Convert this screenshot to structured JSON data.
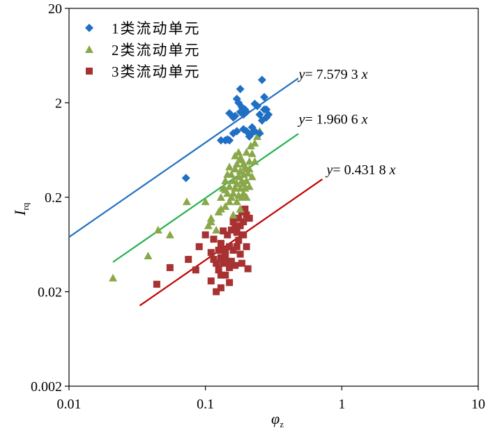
{
  "chart_data": {
    "type": "scatter",
    "x_scale": "log",
    "y_scale": "log",
    "xlim": [
      0.01,
      10
    ],
    "ylim": [
      0.002,
      20
    ],
    "x_ticks": [
      {
        "value": 0.01,
        "label": "0.01"
      },
      {
        "value": 0.1,
        "label": "0.1"
      },
      {
        "value": 1,
        "label": "1"
      },
      {
        "value": 10,
        "label": "10"
      }
    ],
    "y_ticks": [
      {
        "value": 0.002,
        "label": "0.002"
      },
      {
        "value": 0.02,
        "label": "0.02"
      },
      {
        "value": 0.2,
        "label": "0.2"
      },
      {
        "value": 2,
        "label": "2"
      },
      {
        "value": 20,
        "label": "20"
      }
    ],
    "xlabel": "φ",
    "xlabel_sub": "z",
    "ylabel": "I",
    "ylabel_sub": "rq",
    "legend_position": "top-left",
    "series": [
      {
        "name": "1类流动单元",
        "marker": "diamond",
        "color": "#1f6fc4",
        "points": [
          [
            0.072,
            0.32
          ],
          [
            0.13,
            0.8
          ],
          [
            0.14,
            0.8
          ],
          [
            0.145,
            0.82
          ],
          [
            0.15,
            0.8
          ],
          [
            0.15,
            1.55
          ],
          [
            0.16,
            1.4
          ],
          [
            0.165,
            1.45
          ],
          [
            0.17,
            2.2
          ],
          [
            0.17,
            1.0
          ],
          [
            0.175,
            2.0
          ],
          [
            0.18,
            2.8
          ],
          [
            0.18,
            1.6
          ],
          [
            0.185,
            1.8
          ],
          [
            0.19,
            1.5
          ],
          [
            0.195,
            1.7
          ],
          [
            0.2,
            1.6
          ],
          [
            0.2,
            1.0
          ],
          [
            0.21,
            0.88
          ],
          [
            0.22,
            1.1
          ],
          [
            0.23,
            1.95
          ],
          [
            0.23,
            1.0
          ],
          [
            0.24,
            1.85
          ],
          [
            0.25,
            1.5
          ],
          [
            0.25,
            0.95
          ],
          [
            0.26,
            3.5
          ],
          [
            0.26,
            1.3
          ],
          [
            0.27,
            2.3
          ],
          [
            0.27,
            1.7
          ],
          [
            0.28,
            1.7
          ],
          [
            0.28,
            1.4
          ],
          [
            0.29,
            1.5
          ],
          [
            0.16,
            0.95
          ],
          [
            0.19,
            1.05
          ],
          [
            0.22,
            0.96
          ]
        ]
      },
      {
        "name": "2类流动单元",
        "marker": "triangle",
        "color": "#8aa84a",
        "points": [
          [
            0.021,
            0.028
          ],
          [
            0.038,
            0.048
          ],
          [
            0.045,
            0.09
          ],
          [
            0.055,
            0.08
          ],
          [
            0.073,
            0.18
          ],
          [
            0.1,
            0.18
          ],
          [
            0.105,
            0.1
          ],
          [
            0.11,
            0.11
          ],
          [
            0.11,
            0.12
          ],
          [
            0.12,
            0.09
          ],
          [
            0.125,
            0.14
          ],
          [
            0.13,
            0.15
          ],
          [
            0.13,
            0.2
          ],
          [
            0.135,
            0.25
          ],
          [
            0.14,
            0.16
          ],
          [
            0.14,
            0.3
          ],
          [
            0.145,
            0.22
          ],
          [
            0.15,
            0.18
          ],
          [
            0.15,
            0.26
          ],
          [
            0.155,
            0.2
          ],
          [
            0.155,
            0.35
          ],
          [
            0.16,
            0.13
          ],
          [
            0.16,
            0.22
          ],
          [
            0.16,
            0.3
          ],
          [
            0.165,
            0.4
          ],
          [
            0.165,
            0.25
          ],
          [
            0.17,
            0.18
          ],
          [
            0.17,
            0.28
          ],
          [
            0.17,
            0.45
          ],
          [
            0.175,
            0.21
          ],
          [
            0.175,
            0.33
          ],
          [
            0.18,
            0.15
          ],
          [
            0.18,
            0.25
          ],
          [
            0.18,
            0.38
          ],
          [
            0.185,
            0.2
          ],
          [
            0.185,
            0.3
          ],
          [
            0.185,
            0.5
          ],
          [
            0.19,
            0.22
          ],
          [
            0.19,
            0.35
          ],
          [
            0.19,
            0.28
          ],
          [
            0.195,
            0.25
          ],
          [
            0.195,
            0.42
          ],
          [
            0.2,
            0.3
          ],
          [
            0.2,
            0.6
          ],
          [
            0.2,
            0.2
          ],
          [
            0.205,
            0.36
          ],
          [
            0.21,
            0.26
          ],
          [
            0.21,
            0.48
          ],
          [
            0.215,
            0.7
          ],
          [
            0.22,
            0.58
          ],
          [
            0.22,
            0.33
          ],
          [
            0.23,
            0.75
          ],
          [
            0.23,
            0.48
          ],
          [
            0.24,
            0.88
          ],
          [
            0.25,
            1.0
          ],
          [
            0.175,
            0.6
          ],
          [
            0.165,
            0.55
          ],
          [
            0.15,
            0.42
          ],
          [
            0.145,
            0.35
          ],
          [
            0.14,
            0.24
          ],
          [
            0.2,
            0.4
          ],
          [
            0.19,
            0.45
          ],
          [
            0.18,
            0.52
          ],
          [
            0.21,
            0.4
          ]
        ]
      },
      {
        "name": "3类流动单元",
        "marker": "square",
        "color": "#a83232",
        "points": [
          [
            0.044,
            0.024
          ],
          [
            0.055,
            0.036
          ],
          [
            0.075,
            0.044
          ],
          [
            0.085,
            0.034
          ],
          [
            0.09,
            0.06
          ],
          [
            0.1,
            0.08
          ],
          [
            0.11,
            0.052
          ],
          [
            0.11,
            0.026
          ],
          [
            0.115,
            0.072
          ],
          [
            0.12,
            0.04
          ],
          [
            0.12,
            0.02
          ],
          [
            0.125,
            0.034
          ],
          [
            0.13,
            0.065
          ],
          [
            0.13,
            0.046
          ],
          [
            0.13,
            0.022
          ],
          [
            0.135,
            0.04
          ],
          [
            0.135,
            0.088
          ],
          [
            0.14,
            0.055
          ],
          [
            0.14,
            0.03
          ],
          [
            0.145,
            0.042
          ],
          [
            0.145,
            0.08
          ],
          [
            0.15,
            0.06
          ],
          [
            0.15,
            0.036
          ],
          [
            0.15,
            0.025
          ],
          [
            0.155,
            0.09
          ],
          [
            0.155,
            0.042
          ],
          [
            0.16,
            0.11
          ],
          [
            0.16,
            0.055
          ],
          [
            0.165,
            0.038
          ],
          [
            0.17,
            0.085
          ],
          [
            0.17,
            0.06
          ],
          [
            0.175,
            0.12
          ],
          [
            0.175,
            0.07
          ],
          [
            0.18,
            0.1
          ],
          [
            0.18,
            0.05
          ],
          [
            0.185,
            0.14
          ],
          [
            0.185,
            0.04
          ],
          [
            0.19,
            0.11
          ],
          [
            0.19,
            0.08
          ],
          [
            0.195,
            0.15
          ],
          [
            0.2,
            0.06
          ],
          [
            0.2,
            0.13
          ],
          [
            0.205,
            0.035
          ],
          [
            0.21,
            0.12
          ],
          [
            0.14,
            0.048
          ],
          [
            0.125,
            0.055
          ],
          [
            0.165,
            0.095
          ],
          [
            0.13,
            0.03
          ],
          [
            0.115,
            0.044
          ]
        ]
      }
    ],
    "fit_lines": [
      {
        "name": "fit-1",
        "color": "#1f6fc4",
        "slope": 7.5793,
        "x_range": [
          0.01,
          0.48
        ],
        "label_x": "y",
        "label_rest": "= 7.579 3 ",
        "label_var": "x",
        "label_at": [
          0.45,
          3.6
        ]
      },
      {
        "name": "fit-2",
        "color": "#22b14c",
        "slope": 1.9606,
        "x_range": [
          0.021,
          0.48
        ],
        "label_x": "y",
        "label_rest": "= 1.960 6 ",
        "label_var": "x",
        "label_at": [
          0.45,
          1.2
        ]
      },
      {
        "name": "fit-3",
        "color": "#c00000",
        "slope": 0.4318,
        "x_range": [
          0.033,
          0.72
        ],
        "label_x": "y",
        "label_rest": "= 0.431 8 ",
        "label_var": "x",
        "label_at": [
          0.72,
          0.35
        ]
      }
    ]
  }
}
